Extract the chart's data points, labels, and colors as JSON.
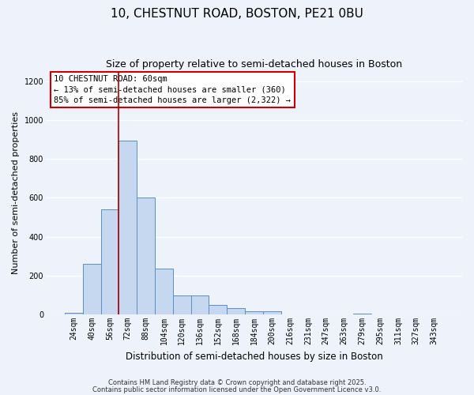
{
  "title": "10, CHESTNUT ROAD, BOSTON, PE21 0BU",
  "subtitle": "Size of property relative to semi-detached houses in Boston",
  "xlabel": "Distribution of semi-detached houses by size in Boston",
  "ylabel": "Number of semi-detached properties",
  "categories": [
    "24sqm",
    "40sqm",
    "56sqm",
    "72sqm",
    "88sqm",
    "104sqm",
    "120sqm",
    "136sqm",
    "152sqm",
    "168sqm",
    "184sqm",
    "200sqm",
    "216sqm",
    "231sqm",
    "247sqm",
    "263sqm",
    "279sqm",
    "295sqm",
    "311sqm",
    "327sqm",
    "343sqm"
  ],
  "values": [
    10,
    260,
    540,
    895,
    600,
    235,
    100,
    100,
    50,
    35,
    15,
    15,
    0,
    0,
    0,
    0,
    5,
    0,
    0,
    0,
    0
  ],
  "bar_color": "#c5d8f0",
  "bar_edge_color": "#5a8fc4",
  "background_color": "#edf2fb",
  "grid_color": "#ffffff",
  "red_line_x": 2.5,
  "annotation_text": "10 CHESTNUT ROAD: 60sqm\n← 13% of semi-detached houses are smaller (360)\n85% of semi-detached houses are larger (2,322) →",
  "annotation_box_color": "#cc0000",
  "ylim": [
    0,
    1250
  ],
  "yticks": [
    0,
    200,
    400,
    600,
    800,
    1000,
    1200
  ],
  "footer_line1": "Contains HM Land Registry data © Crown copyright and database right 2025.",
  "footer_line2": "Contains public sector information licensed under the Open Government Licence v3.0.",
  "title_fontsize": 11,
  "subtitle_fontsize": 9,
  "tick_fontsize": 7,
  "ylabel_fontsize": 8,
  "xlabel_fontsize": 8.5,
  "annotation_fontsize": 7.5,
  "footer_fontsize": 6
}
